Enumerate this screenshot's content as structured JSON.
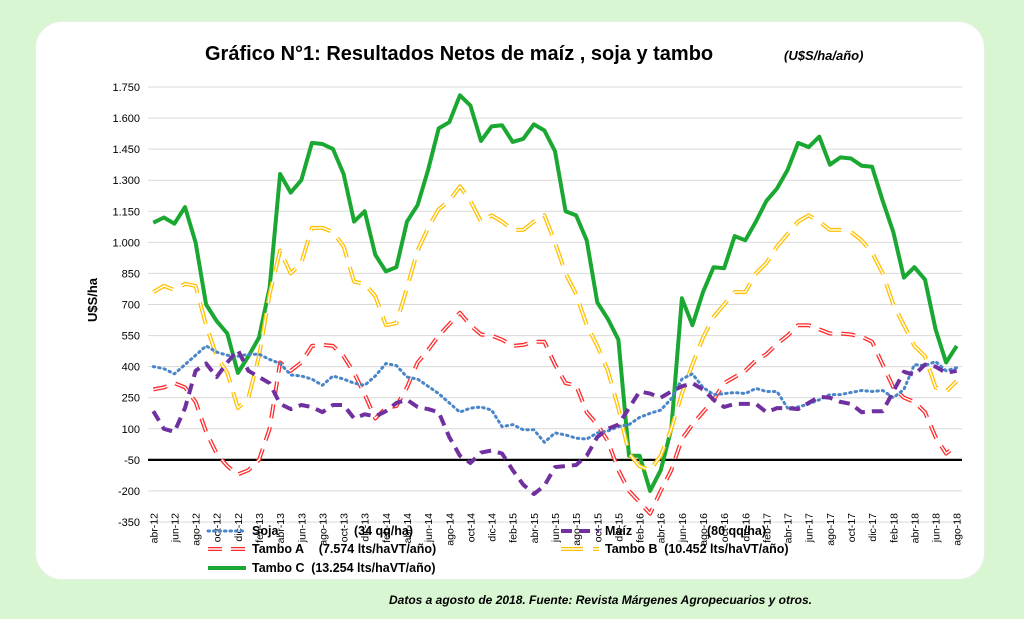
{
  "chart_data": {
    "type": "line",
    "title": "Gráfico N°1: Resultados Netos de maíz , soja y tambo",
    "title_units": "(U$S/ha/año)",
    "ylabel": "U$S/ha",
    "ylim": [
      -350,
      1750
    ],
    "yticks": [
      -350,
      -200,
      -50,
      100,
      250,
      400,
      550,
      700,
      850,
      1000,
      1150,
      1300,
      1450,
      1600,
      1750
    ],
    "ytick_labels": [
      "-350",
      "-200",
      "-50",
      "100",
      "250",
      "400",
      "550",
      "700",
      "850",
      "1.000",
      "1.150",
      "1.300",
      "1.450",
      "1.600",
      "1.750"
    ],
    "grid": true,
    "legend": "bottom",
    "x": [
      "abr-12",
      "may-12",
      "jun-12",
      "jul-12",
      "ago-12",
      "sep-12",
      "oct-12",
      "nov-12",
      "dic-12",
      "ene-13",
      "feb-13",
      "mar-13",
      "abr-13",
      "may-13",
      "jun-13",
      "jul-13",
      "ago-13",
      "sep-13",
      "oct-13",
      "nov-13",
      "dic-13",
      "ene-14",
      "feb-14",
      "mar-14",
      "abr-14",
      "may-14",
      "jun-14",
      "jul-14",
      "ago-14",
      "sep-14",
      "oct-14",
      "nov-14",
      "dic-14",
      "ene-15",
      "feb-15",
      "mar-15",
      "abr-15",
      "may-15",
      "jun-15",
      "jul-15",
      "ago-15",
      "sep-15",
      "oct-15",
      "nov-15",
      "dic-15",
      "ene-16",
      "feb-16",
      "mar-16",
      "abr-16",
      "may-16",
      "jun-16",
      "jul-16",
      "ago-16",
      "sep-16",
      "oct-16",
      "nov-16",
      "dic-16",
      "ene-17",
      "feb-17",
      "mar-17",
      "abr-17",
      "may-17",
      "jun-17",
      "jul-17",
      "ago-17",
      "sep-17",
      "oct-17",
      "nov-17",
      "dic-17",
      "ene-18",
      "feb-18",
      "mar-18",
      "abr-18",
      "may-18",
      "jun-18",
      "jul-18",
      "ago-18"
    ],
    "x_tick_labels": [
      "abr-12",
      "jun-12",
      "ago-12",
      "oct-12",
      "dic-12",
      "feb-13",
      "abr-13",
      "jun-13",
      "ago-13",
      "oct-13",
      "dic-13",
      "feb-14",
      "abr-14",
      "jun-14",
      "ago-14",
      "oct-14",
      "dic-14",
      "feb-15",
      "abr-15",
      "jun-15",
      "ago-15",
      "oct-15",
      "dic-15",
      "feb-16",
      "abr-16",
      "jun-16",
      "ago-16",
      "oct-16",
      "dic-16",
      "feb-17",
      "abr-17",
      "jun-17",
      "ago-17",
      "oct-17",
      "dic-17",
      "feb-18",
      "abr-18",
      "jun-18",
      "ago-18"
    ],
    "series": [
      {
        "name": "Soja",
        "legend_detail": "(34 qq/ha)",
        "color": "#4a86c8",
        "style": "dotted",
        "values": [
          400,
          390,
          365,
          410,
          455,
          500,
          470,
          455,
          450,
          460,
          460,
          435,
          415,
          360,
          355,
          340,
          310,
          355,
          340,
          320,
          310,
          355,
          415,
          405,
          350,
          340,
          305,
          270,
          225,
          180,
          200,
          205,
          190,
          110,
          120,
          95,
          95,
          35,
          80,
          70,
          55,
          50,
          80,
          90,
          110,
          120,
          155,
          175,
          190,
          245,
          340,
          365,
          300,
          265,
          270,
          275,
          270,
          295,
          280,
          280,
          200,
          205,
          220,
          240,
          265,
          265,
          275,
          285,
          280,
          285,
          250,
          290,
          410,
          405,
          425,
          380,
          395
        ]
      },
      {
        "name": "Maíz",
        "legend_detail": "(80 qq/ha)",
        "color": "#7030a0",
        "style": "dashed",
        "values": [
          185,
          100,
          85,
          200,
          380,
          415,
          350,
          420,
          480,
          380,
          350,
          320,
          220,
          195,
          215,
          205,
          180,
          215,
          215,
          150,
          170,
          160,
          185,
          225,
          240,
          205,
          195,
          180,
          60,
          -30,
          -65,
          -15,
          -5,
          -20,
          -100,
          -170,
          -215,
          -175,
          -85,
          -80,
          -75,
          -30,
          60,
          100,
          120,
          200,
          280,
          270,
          250,
          280,
          305,
          320,
          290,
          240,
          205,
          220,
          220,
          220,
          180,
          200,
          200,
          195,
          225,
          255,
          250,
          230,
          220,
          180,
          185,
          185,
          280,
          375,
          360,
          410,
          400,
          370,
          380
        ]
      },
      {
        "name": "Tambo  A",
        "legend_detail": "(7.574 lts/haVT/año)",
        "color": "#ff2a2a",
        "style": "dashed",
        "values": [
          290,
          300,
          320,
          300,
          230,
          85,
          -20,
          -80,
          -120,
          -100,
          -50,
          100,
          420,
          380,
          420,
          500,
          505,
          500,
          450,
          370,
          265,
          150,
          200,
          210,
          300,
          420,
          480,
          550,
          605,
          660,
          600,
          555,
          550,
          530,
          500,
          505,
          520,
          520,
          410,
          320,
          310,
          180,
          120,
          40,
          -100,
          -200,
          -255,
          -310,
          -200,
          -100,
          50,
          120,
          180,
          240,
          320,
          350,
          380,
          430,
          460,
          510,
          550,
          600,
          600,
          580,
          560,
          560,
          555,
          545,
          520,
          410,
          300,
          250,
          230,
          180,
          60,
          -20,
          20
        ]
      },
      {
        "name": "Tambo B",
        "legend_detail": "(10.452 lts/haVT/año)",
        "color": "#ffc000",
        "style": "double",
        "values": [
          760,
          790,
          770,
          800,
          790,
          600,
          450,
          370,
          200,
          250,
          450,
          750,
          960,
          850,
          900,
          1070,
          1070,
          1050,
          980,
          810,
          800,
          740,
          600,
          610,
          780,
          960,
          1070,
          1160,
          1200,
          1270,
          1200,
          1100,
          1130,
          1100,
          1060,
          1060,
          1100,
          1130,
          1000,
          850,
          750,
          600,
          500,
          380,
          200,
          -20,
          -80,
          -100,
          -30,
          100,
          270,
          410,
          540,
          640,
          700,
          760,
          760,
          850,
          900,
          980,
          1040,
          1100,
          1130,
          1100,
          1060,
          1060,
          1050,
          1010,
          950,
          850,
          700,
          600,
          500,
          450,
          300,
          280,
          330
        ]
      },
      {
        "name": "Tambo C",
        "legend_detail": "(13.254 lts/haVT/año)",
        "color": "#1aa832",
        "style": "solid",
        "values": [
          1095,
          1120,
          1090,
          1170,
          1000,
          700,
          620,
          560,
          370,
          450,
          540,
          780,
          1330,
          1240,
          1300,
          1480,
          1475,
          1450,
          1330,
          1100,
          1150,
          940,
          860,
          880,
          1100,
          1180,
          1350,
          1550,
          1580,
          1710,
          1660,
          1490,
          1560,
          1565,
          1485,
          1500,
          1570,
          1540,
          1440,
          1150,
          1130,
          1010,
          710,
          630,
          530,
          -30,
          -30,
          -200,
          -100,
          100,
          730,
          600,
          760,
          880,
          875,
          1030,
          1010,
          1100,
          1200,
          1260,
          1350,
          1480,
          1460,
          1510,
          1375,
          1410,
          1405,
          1370,
          1365,
          1200,
          1050,
          830,
          880,
          820,
          580,
          420,
          500
        ]
      }
    ],
    "source_note": "Datos a agosto de 2018. Fuente: Revista Márgenes Agropecuarios  y otros."
  }
}
